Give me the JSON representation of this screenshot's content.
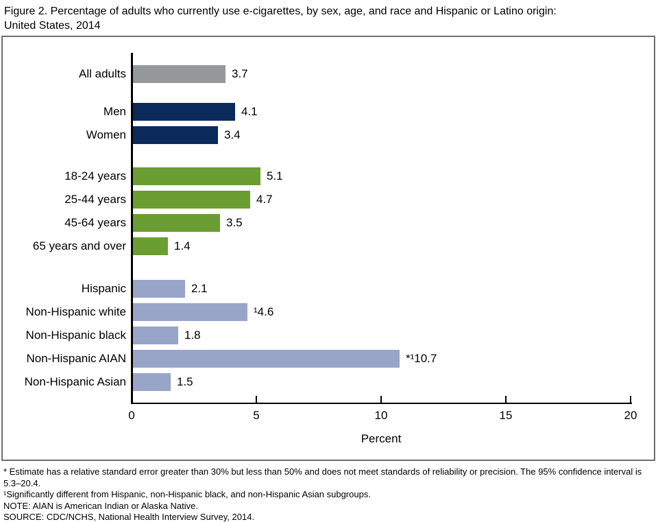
{
  "title": {
    "line1": "Figure 2. Percentage of adults who currently use e-cigarettes, by sex, age, and race and Hispanic or Latino origin:",
    "line2": "United States, 2014"
  },
  "chart_data": {
    "type": "bar",
    "orientation": "horizontal",
    "xlabel": "Percent",
    "xlim": [
      0,
      20
    ],
    "xticks": [
      0,
      5,
      10,
      15,
      20
    ],
    "grid": false,
    "legend": "none",
    "groups": [
      {
        "name": "all-adults",
        "color": "#95989b",
        "rows": [
          {
            "label": "All adults",
            "value": 3.7,
            "display": "3.7"
          }
        ]
      },
      {
        "name": "sex",
        "color": "#0a2a5c",
        "rows": [
          {
            "label": "Men",
            "value": 4.1,
            "display": "4.1"
          },
          {
            "label": "Women",
            "value": 3.4,
            "display": "3.4"
          }
        ]
      },
      {
        "name": "age",
        "color": "#6b9e32",
        "rows": [
          {
            "label": "18-24 years",
            "value": 5.1,
            "display": "5.1"
          },
          {
            "label": "25-44 years",
            "value": 4.7,
            "display": "4.7"
          },
          {
            "label": "45-64 years",
            "value": 3.5,
            "display": "3.5"
          },
          {
            "label": "65 years and over",
            "value": 1.4,
            "display": "1.4"
          }
        ]
      },
      {
        "name": "race-hispanic-origin",
        "color": "#98a5c9",
        "rows": [
          {
            "label": "Hispanic",
            "value": 2.1,
            "display": "2.1"
          },
          {
            "label": "Non-Hispanic white",
            "value": 4.6,
            "display": "¹4.6"
          },
          {
            "label": "Non-Hispanic black",
            "value": 1.8,
            "display": "1.8"
          },
          {
            "label": "Non-Hispanic AIAN",
            "value": 10.7,
            "display": "*¹10.7"
          },
          {
            "label": "Non-Hispanic Asian",
            "value": 1.5,
            "display": "1.5"
          }
        ]
      }
    ]
  },
  "footnotes": [
    "* Estimate has a relative standard error greater than 30% but less than 50% and does not meet standards of reliability or precision. The 95% confidence interval is 5.3–20.4.",
    "¹Significantly different from Hispanic, non-Hispanic black, and non-Hispanic Asian subgroups.",
    "NOTE: AIAN is American Indian or Alaska Native.",
    "SOURCE: CDC/NCHS, National Health Interview Survey, 2014."
  ]
}
